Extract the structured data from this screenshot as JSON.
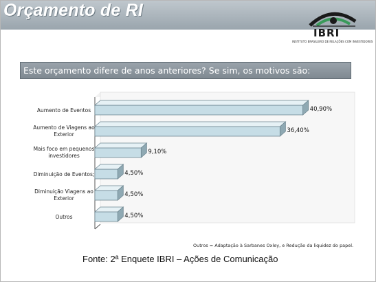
{
  "header": {
    "title": "Orçamento de RI",
    "logo_text": "IBRI",
    "logo_tagline": "INSTITUTO BRASILEIRO DE RELAÇÕES COM INVESTIDORES"
  },
  "question": "Este orçamento difere de anos anteriores? Se sim, os motivos são:",
  "footnote": "Outros = Adaptação à Sarbanes Oxley, e Redução da liquidez do papel.",
  "source": "Fonte: 2ª Enquete IBRI – Ações de Comunicação",
  "colors": {
    "bar_face": "#c6dde6",
    "bar_top": "#e6f1f5",
    "bar_side": "#8fa9b3",
    "header": "#a7b1b8"
  },
  "chart_data": {
    "type": "bar",
    "orientation": "horizontal",
    "categories": [
      "Aumento de Eventos",
      "Aumento de Viagens ao Exterior",
      "Mais foco em pequenos investidores",
      "Diminuição de Eventos;",
      "Diminuição Viagens ao Exterior",
      "Outros"
    ],
    "category_lines": [
      [
        "Aumento de Eventos"
      ],
      [
        "Aumento de Viagens ao",
        "Exterior"
      ],
      [
        "Mais foco em pequenos",
        "investidores"
      ],
      [
        "Diminuição de Eventos;"
      ],
      [
        "Diminuição Viagens ao",
        "Exterior"
      ],
      [
        "Outros"
      ]
    ],
    "values": [
      40.9,
      36.4,
      9.1,
      4.5,
      4.5,
      4.5
    ],
    "value_labels": [
      "40,90%",
      "36,40%",
      "9,10%",
      "4,50%",
      "4,50%",
      "4,50%"
    ],
    "xlim": [
      0,
      50
    ],
    "grid": false,
    "legend": "none"
  }
}
